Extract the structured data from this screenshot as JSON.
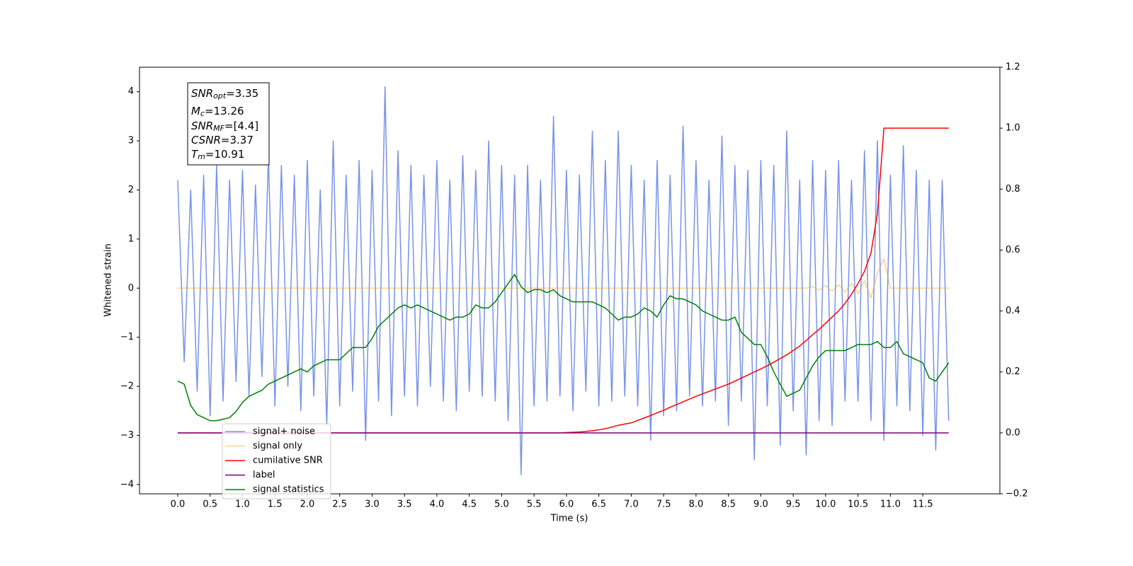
{
  "chart_data": {
    "type": "line",
    "xlabel": "Time (s)",
    "ylabel": "Whitened strain",
    "xlim": [
      -0.59,
      12.69
    ],
    "ylim": [
      -4.19,
      4.5
    ],
    "y2lim": [
      -0.2,
      1.2
    ],
    "xticks": [
      {
        "value": 0,
        "label": "0.0"
      },
      0.5,
      {
        "value": 1,
        "label": "1.0"
      },
      1.5,
      {
        "value": 2,
        "label": "2.0"
      },
      2.5,
      {
        "value": 3,
        "label": "3.0"
      },
      3.5,
      {
        "value": 4,
        "label": "4.0"
      },
      4.5,
      {
        "value": 5,
        "label": "5.0"
      },
      5.5,
      {
        "value": 6,
        "label": "6.0"
      },
      6.5,
      {
        "value": 7,
        "label": "7.0"
      },
      7.5,
      {
        "value": 8,
        "label": "8.0"
      },
      8.5,
      {
        "value": 9,
        "label": "9.0"
      },
      9.5,
      {
        "value": 10,
        "label": "10.0"
      },
      10.5,
      {
        "value": 11,
        "label": "11.0"
      },
      11.5
    ],
    "yticks": [
      {
        "value": -4,
        "label": "−4"
      },
      {
        "value": -3,
        "label": "−3"
      },
      {
        "value": -2,
        "label": "−2"
      },
      {
        "value": -1,
        "label": "−1"
      },
      0,
      1,
      2,
      3,
      4
    ],
    "y2ticks": [
      {
        "value": -0.2,
        "label": "−0.2"
      },
      {
        "value": 0,
        "label": "0.0"
      },
      0.2,
      0.4,
      0.6,
      0.8,
      {
        "value": 1,
        "label": "1.0"
      },
      1.2
    ],
    "legend": "lower left",
    "annotation": [
      {
        "symbol": "SNR",
        "subscript": "opt",
        "text": "=3.35"
      },
      {
        "symbol": "M",
        "subscript": "c",
        "text": "=13.26"
      },
      {
        "symbol": "SNR",
        "subscript": "MF",
        "text": "=[4.4]"
      },
      {
        "symbol": "CSNR",
        "text": "=3.37"
      },
      {
        "symbol": "T",
        "subscript": "m",
        "text": "=10.91"
      }
    ],
    "x": [
      0,
      0.1,
      0.2,
      0.3,
      0.4,
      0.5,
      0.6,
      0.7,
      0.8,
      0.9,
      1,
      1.1,
      1.2,
      1.3,
      1.4,
      1.5,
      1.6,
      1.7,
      1.8,
      1.9,
      2,
      2.1,
      2.2,
      2.3,
      2.4,
      2.5,
      2.6,
      2.7,
      2.8,
      2.9,
      3,
      3.1,
      3.2,
      3.3,
      3.4,
      3.5,
      3.6,
      3.7,
      3.8,
      3.9,
      4,
      4.1,
      4.2,
      4.3,
      4.4,
      4.5,
      4.6,
      4.7,
      4.8,
      4.9,
      5,
      5.1,
      5.2,
      5.3,
      5.4,
      5.5,
      5.6,
      5.7,
      5.8,
      5.9,
      6,
      6.1,
      6.2,
      6.3,
      6.4,
      6.5,
      6.6,
      6.7,
      6.8,
      6.9,
      7,
      7.1,
      7.2,
      7.3,
      7.4,
      7.5,
      7.6,
      7.7,
      7.8,
      7.9,
      8,
      8.1,
      8.2,
      8.3,
      8.4,
      8.5,
      8.6,
      8.7,
      8.8,
      8.9,
      9,
      9.1,
      9.2,
      9.3,
      9.4,
      9.5,
      9.6,
      9.7,
      9.8,
      9.9,
      10,
      10.1,
      10.2,
      10.3,
      10.4,
      10.5,
      10.6,
      10.7,
      10.8,
      10.9,
      11,
      11.1,
      11.2,
      11.3,
      11.4,
      11.5,
      11.6,
      11.7,
      11.8,
      11.9
    ],
    "series": [
      {
        "name": "signal+ noise",
        "color": "#7893e8",
        "values": [
          2.2,
          -1.5,
          2.0,
          -2.1,
          2.3,
          -2.6,
          2.5,
          -2.3,
          2.2,
          -1.9,
          2.4,
          -2.2,
          2.1,
          -1.8,
          2.7,
          -2.4,
          2.5,
          -2.0,
          2.3,
          -2.5,
          2.6,
          -2.2,
          2.0,
          -2.8,
          3.0,
          -2.4,
          2.3,
          -2.1,
          2.6,
          -3.1,
          2.4,
          -2.3,
          4.1,
          -2.6,
          2.8,
          -2.2,
          2.5,
          -2.4,
          2.3,
          -2.0,
          2.6,
          -2.3,
          2.2,
          -2.5,
          2.7,
          -2.1,
          2.4,
          -2.2,
          3.0,
          -2.3,
          2.5,
          -2.7,
          2.3,
          -3.8,
          2.5,
          -2.4,
          2.2,
          -2.3,
          3.5,
          -2.2,
          2.4,
          -2.5,
          2.3,
          -2.1,
          3.2,
          -2.4,
          2.6,
          -2.3,
          3.2,
          -2.2,
          2.5,
          -2.4,
          2.2,
          -3.1,
          2.6,
          -2.6,
          2.3,
          -2.5,
          3.3,
          -2.2,
          2.6,
          -2.4,
          2.2,
          -2.3,
          3.1,
          -2.8,
          2.5,
          -2.3,
          2.4,
          -3.5,
          2.6,
          -2.4,
          2.5,
          -3.2,
          3.2,
          -2.5,
          2.2,
          -3.4,
          2.6,
          -2.7,
          2.4,
          -2.8,
          2.6,
          -2.3,
          2.2,
          -2.3,
          2.8,
          -2.7,
          3.0,
          -3.1,
          2.3,
          -2.4,
          2.9,
          -2.5,
          2.4,
          -3.0,
          2.2,
          -3.3,
          2.2,
          -2.7
        ]
      },
      {
        "name": "signal only",
        "color": "#f5a623",
        "alpha": 0.5,
        "values": [
          0,
          0,
          0,
          0,
          0,
          0,
          0,
          0,
          0,
          0,
          0,
          0,
          0,
          0,
          0,
          0,
          0,
          0,
          0,
          0,
          0,
          0,
          0,
          0,
          0,
          0,
          0,
          0,
          0,
          0,
          0,
          0,
          0,
          0,
          0,
          0,
          0,
          0,
          0,
          0,
          0,
          0,
          0,
          0,
          0,
          0,
          0,
          0,
          0,
          0,
          0,
          0,
          0,
          0,
          0,
          0,
          0,
          0,
          0,
          0,
          0,
          0,
          0,
          0,
          0,
          0,
          0,
          0,
          0,
          0,
          0,
          0,
          0,
          0,
          0,
          0,
          0,
          0,
          0,
          0,
          0,
          0,
          0,
          0,
          0,
          0,
          0,
          0,
          0,
          0,
          0,
          0,
          0,
          0,
          0,
          0,
          0,
          0,
          0.03,
          -0.04,
          0.05,
          -0.06,
          0.07,
          -0.08,
          0.1,
          -0.12,
          0.15,
          -0.2,
          0.3,
          0.6,
          0,
          0,
          0,
          0,
          0,
          0,
          0,
          0,
          0,
          0
        ]
      },
      {
        "name": "cumilative SNR",
        "color": "#ff0000",
        "axis": "y2",
        "values": [
          0,
          0,
          0,
          0,
          0,
          0,
          0,
          0,
          0,
          0,
          0,
          0,
          0,
          0,
          0,
          0,
          0,
          0,
          0,
          0,
          0,
          0,
          0,
          0,
          0,
          0,
          0,
          0,
          0,
          0,
          0,
          0,
          0,
          0,
          0,
          0,
          0,
          0,
          0,
          0,
          0,
          0,
          0,
          0,
          0,
          0,
          0,
          0,
          0,
          0,
          0,
          0,
          0,
          0,
          0,
          0,
          0,
          0,
          0,
          0,
          0.001,
          0.002,
          0.003,
          0.005,
          0.007,
          0.01,
          0.014,
          0.019,
          0.025,
          0.029,
          0.033,
          0.041,
          0.049,
          0.057,
          0.066,
          0.074,
          0.084,
          0.093,
          0.102,
          0.111,
          0.12,
          0.128,
          0.136,
          0.144,
          0.152,
          0.16,
          0.17,
          0.18,
          0.19,
          0.2,
          0.21,
          0.22,
          0.232,
          0.244,
          0.256,
          0.27,
          0.285,
          0.303,
          0.322,
          0.34,
          0.36,
          0.38,
          0.4,
          0.425,
          0.455,
          0.49,
          0.53,
          0.59,
          0.72,
          1.0,
          1.0,
          1.0,
          1.0,
          1.0,
          1.0,
          1.0,
          1.0,
          1.0,
          1.0,
          1.0
        ]
      },
      {
        "name": "label",
        "color": "#800080",
        "axis": "y2",
        "values": [
          0,
          0,
          0,
          0,
          0,
          0,
          0,
          0,
          0,
          0,
          0,
          0,
          0,
          0,
          0,
          0,
          0,
          0,
          0,
          0,
          0,
          0,
          0,
          0,
          0,
          0,
          0,
          0,
          0,
          0,
          0,
          0,
          0,
          0,
          0,
          0,
          0,
          0,
          0,
          0,
          0,
          0,
          0,
          0,
          0,
          0,
          0,
          0,
          0,
          0,
          0,
          0,
          0,
          0,
          0,
          0,
          0,
          0,
          0,
          0,
          0,
          0,
          0,
          0,
          0,
          0,
          0,
          0,
          0,
          0,
          0,
          0,
          0,
          0,
          0,
          0,
          0,
          0,
          0,
          0,
          0,
          0,
          0,
          0,
          0,
          0,
          0,
          0,
          0,
          0,
          0,
          0,
          0,
          0,
          0,
          0,
          0,
          0,
          0,
          0,
          0,
          0,
          0,
          0,
          0,
          0,
          0,
          0,
          0,
          0,
          0,
          0,
          0,
          0,
          0,
          0,
          0,
          0,
          0,
          0
        ]
      },
      {
        "name": "signal statistics",
        "color": "#008000",
        "axis": "y2",
        "values": [
          0.17,
          0.16,
          0.09,
          0.06,
          0.05,
          0.04,
          0.04,
          0.045,
          0.05,
          0.07,
          0.1,
          0.12,
          0.13,
          0.14,
          0.16,
          0.17,
          0.18,
          0.19,
          0.2,
          0.21,
          0.2,
          0.22,
          0.23,
          0.24,
          0.24,
          0.24,
          0.26,
          0.28,
          0.28,
          0.28,
          0.31,
          0.35,
          0.37,
          0.39,
          0.41,
          0.42,
          0.41,
          0.42,
          0.41,
          0.4,
          0.39,
          0.38,
          0.37,
          0.38,
          0.38,
          0.39,
          0.42,
          0.41,
          0.41,
          0.43,
          0.46,
          0.49,
          0.52,
          0.48,
          0.46,
          0.47,
          0.47,
          0.46,
          0.47,
          0.45,
          0.44,
          0.43,
          0.43,
          0.43,
          0.43,
          0.42,
          0.41,
          0.39,
          0.37,
          0.38,
          0.38,
          0.39,
          0.41,
          0.4,
          0.38,
          0.42,
          0.45,
          0.44,
          0.44,
          0.43,
          0.42,
          0.4,
          0.39,
          0.38,
          0.37,
          0.37,
          0.38,
          0.33,
          0.31,
          0.29,
          0.29,
          0.25,
          0.2,
          0.16,
          0.12,
          0.13,
          0.14,
          0.18,
          0.22,
          0.25,
          0.27,
          0.27,
          0.27,
          0.27,
          0.28,
          0.29,
          0.29,
          0.29,
          0.3,
          0.28,
          0.28,
          0.3,
          0.26,
          0.25,
          0.24,
          0.23,
          0.18,
          0.17,
          0.2,
          0.23
        ]
      }
    ]
  }
}
